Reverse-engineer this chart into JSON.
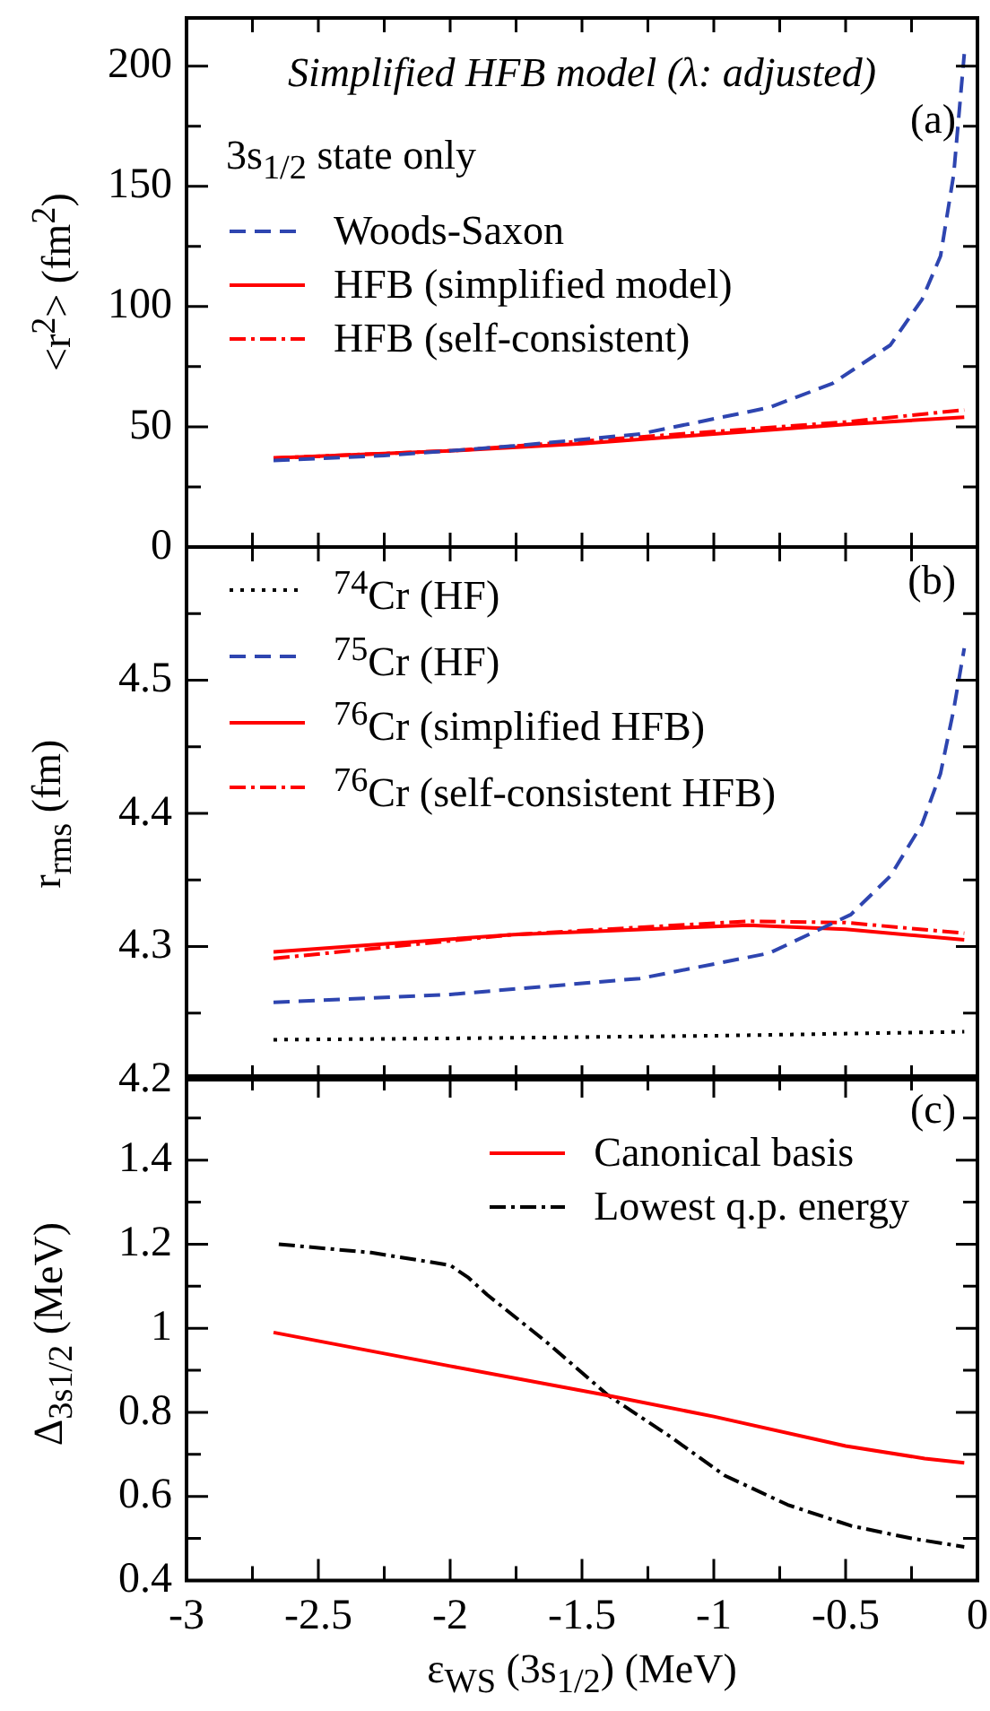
{
  "chart_data": [
    {
      "type": "line",
      "title": "Simplified HFB model (λ: adjusted)",
      "legend_title": "3s$_{1/2}$ state only",
      "ylabel": "<r$^{2}$>  (fm$^{2}$)",
      "annotations": [
        "(a)"
      ],
      "legend": "left",
      "tick_labels": "y",
      "xlim": [
        -3,
        0
      ],
      "xticks": [
        {
          "value": -3,
          "label": null
        },
        {
          "value": -2.75,
          "label": null
        },
        {
          "value": -2.5,
          "label": null
        },
        {
          "value": -2.25,
          "label": null
        },
        {
          "value": -2,
          "label": null
        },
        {
          "value": -1.75,
          "label": null
        },
        {
          "value": -1.5,
          "label": null
        },
        {
          "value": -1.25,
          "label": null
        },
        {
          "value": -1,
          "label": null
        },
        {
          "value": -0.75,
          "label": null
        },
        {
          "value": -0.5,
          "label": null
        },
        {
          "value": -0.25,
          "label": null
        },
        {
          "value": 0,
          "label": null
        }
      ],
      "ylim": [
        0,
        220
      ],
      "yticks": [
        0,
        {
          "value": 25,
          "label": null
        },
        50,
        {
          "value": 75,
          "label": null
        },
        100,
        {
          "value": 125,
          "label": null
        },
        150,
        {
          "value": 175,
          "label": null
        },
        200
      ],
      "series": [
        {
          "name": "Woods-Saxon",
          "color": "#2e45b0",
          "line_style": "dashed",
          "x": [
            -2.67,
            -2.25,
            -1.76,
            -1.28,
            -0.79,
            -0.55,
            -0.33,
            -0.21,
            -0.14,
            -0.09,
            -0.05
          ],
          "values": [
            36,
            38,
            42,
            47,
            58,
            68,
            84,
            103,
            121,
            155,
            205
          ]
        },
        {
          "name": "HFB (simplified model)",
          "color": "#ff0000",
          "line_style": "solid",
          "x": [
            -2.67,
            -2,
            -1.5,
            -1,
            -0.5,
            -0.05
          ],
          "values": [
            37,
            40,
            43,
            47,
            51,
            54
          ]
        },
        {
          "name": "HFB (self-consistent)",
          "color": "#ff0000",
          "line_style": "dashdot",
          "x": [
            -2.67,
            -2,
            -1.5,
            -1,
            -0.5,
            -0.05
          ],
          "values": [
            37,
            40,
            44,
            48,
            52,
            57
          ]
        }
      ]
    },
    {
      "type": "line",
      "ylabel": "r$_{rms}$  (fm)",
      "annotations": [
        "(b)"
      ],
      "legend": "top left",
      "tick_labels": "y",
      "xlim": [
        -3,
        0
      ],
      "xticks": [
        {
          "value": -3,
          "label": null
        },
        {
          "value": -2.75,
          "label": null
        },
        {
          "value": -2.5,
          "label": null
        },
        {
          "value": -2.25,
          "label": null
        },
        {
          "value": -2,
          "label": null
        },
        {
          "value": -1.75,
          "label": null
        },
        {
          "value": -1.5,
          "label": null
        },
        {
          "value": -1.25,
          "label": null
        },
        {
          "value": -1,
          "label": null
        },
        {
          "value": -0.75,
          "label": null
        },
        {
          "value": -0.5,
          "label": null
        },
        {
          "value": -0.25,
          "label": null
        },
        {
          "value": 0,
          "label": null
        }
      ],
      "ylim": [
        4.2,
        4.6
      ],
      "yticks": [
        4.2,
        {
          "value": 4.25,
          "label": null
        },
        4.3,
        {
          "value": 4.35,
          "label": null
        },
        4.4,
        {
          "value": 4.45,
          "label": null
        },
        4.5,
        {
          "value": 4.55,
          "label": null
        },
        {
          "value": 4.6,
          "label": null
        }
      ],
      "series": [
        {
          "name": "$^{74}$Cr (HF)",
          "color": "#000000",
          "line_style": "dotted",
          "x": [
            -2.67,
            -2,
            -1,
            -0.05
          ],
          "values": [
            4.23,
            4.231,
            4.233,
            4.236
          ]
        },
        {
          "name": "$^{75}$Cr (HF)",
          "color": "#2e45b0",
          "line_style": "dashed",
          "x": [
            -2.67,
            -2,
            -1.28,
            -0.79,
            -0.48,
            -0.33,
            -0.21,
            -0.14,
            -0.09,
            -0.05
          ],
          "values": [
            4.258,
            4.264,
            4.276,
            4.295,
            4.324,
            4.353,
            4.392,
            4.43,
            4.478,
            4.524
          ]
        },
        {
          "name": "$^{76}$Cr (simplified HFB)",
          "color": "#ff0000",
          "line_style": "solid",
          "x": [
            -2.67,
            -1.76,
            -0.87,
            -0.5,
            -0.05
          ],
          "values": [
            4.296,
            4.309,
            4.316,
            4.313,
            4.305
          ]
        },
        {
          "name": "$^{76}$Cr (self-consistent HFB)",
          "color": "#ff0000",
          "line_style": "dashdot",
          "x": [
            -2.67,
            -1.76,
            -0.87,
            -0.5,
            -0.05
          ],
          "values": [
            4.291,
            4.309,
            4.319,
            4.318,
            4.31
          ]
        }
      ]
    },
    {
      "type": "line",
      "ylabel": "Δ$_{3s1/2}$  (MeV)",
      "xlabel": "ε$_{WS}$ (3s$_{1/2}$)  (MeV)",
      "annotations": [
        "(c)"
      ],
      "legend": "top right",
      "xlim": [
        -3,
        0
      ],
      "xticks": [
        -3,
        {
          "value": -2.75,
          "label": null
        },
        -2.5,
        {
          "value": -2.25,
          "label": null
        },
        -2,
        {
          "value": -1.75,
          "label": null
        },
        -1.5,
        {
          "value": -1.25,
          "label": null
        },
        -1,
        {
          "value": -0.75,
          "label": null
        },
        -0.5,
        {
          "value": -0.25,
          "label": null
        },
        0
      ],
      "ylim": [
        0.4,
        1.6
      ],
      "yticks": [
        0.4,
        {
          "value": 0.5,
          "label": null
        },
        0.6,
        {
          "value": 0.7,
          "label": null
        },
        0.8,
        {
          "value": 0.9,
          "label": null
        },
        1,
        {
          "value": 1.1,
          "label": null
        },
        1.2,
        {
          "value": 1.3,
          "label": null
        },
        1.4,
        {
          "value": 1.5,
          "label": null
        },
        {
          "value": 1.6,
          "label": null
        }
      ],
      "series": [
        {
          "name": "Canonical basis",
          "color": "#ff0000",
          "line_style": "solid",
          "x": [
            -2.67,
            -2,
            -1.4,
            -1,
            -0.5,
            -0.2,
            -0.05
          ],
          "values": [
            0.99,
            0.91,
            0.84,
            0.79,
            0.72,
            0.69,
            0.68
          ]
        },
        {
          "name": "Lowest q.p. energy",
          "color": "#000000",
          "line_style": "dashdot",
          "x": [
            -2.65,
            -2.3,
            -2,
            -1.93,
            -1.86,
            -1.64,
            -1.4,
            -1.16,
            -0.96,
            -0.72,
            -0.48,
            -0.25,
            -0.05
          ],
          "values": [
            1.2,
            1.18,
            1.15,
            1.12,
            1.08,
            0.97,
            0.84,
            0.74,
            0.65,
            0.58,
            0.53,
            0.5,
            0.48
          ]
        }
      ]
    }
  ]
}
